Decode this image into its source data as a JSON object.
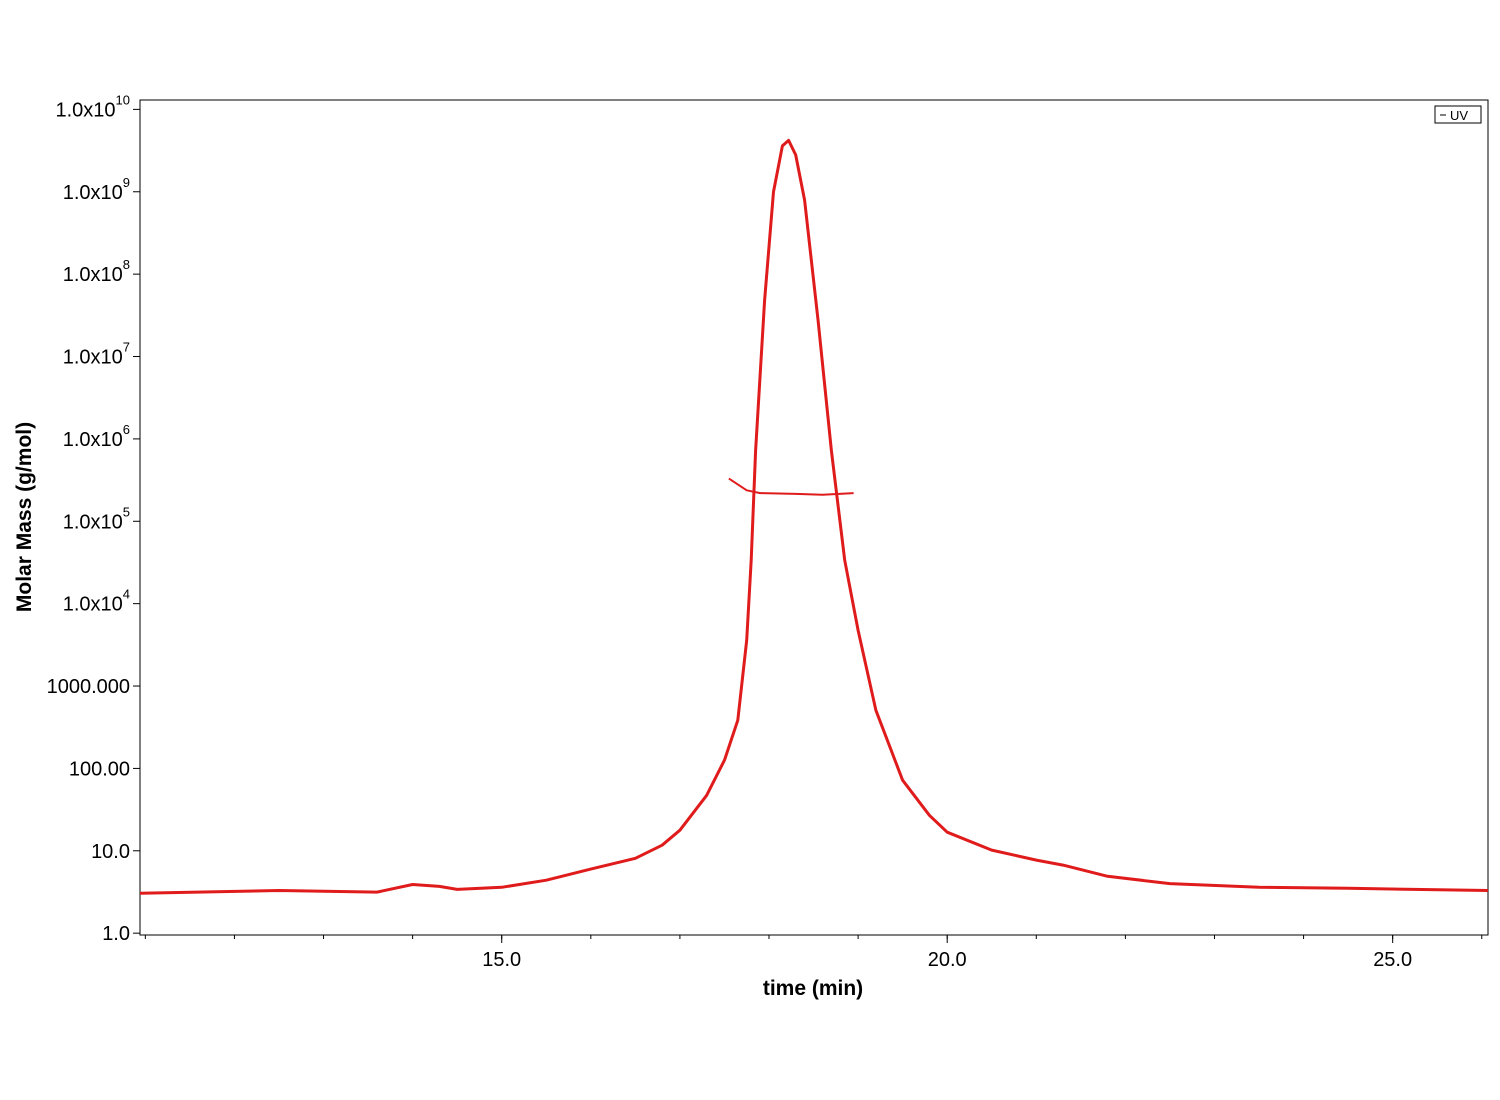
{
  "chart_data": {
    "type": "line",
    "x_label": "time (min)",
    "y_label": "Molar Mass (g/mol)",
    "log_y": true,
    "xlim": [
      10.94,
      26.07
    ],
    "ylim": [
      0.95,
      13000000000
    ],
    "xticks": [
      {
        "value": 15,
        "label": "15.0"
      },
      {
        "value": 20,
        "label": "20.0"
      },
      {
        "value": 25,
        "label": "25.0"
      }
    ],
    "xminor_ticks": [
      11,
      12,
      13,
      14,
      15,
      16,
      17,
      18,
      19,
      20,
      21,
      22,
      23,
      24,
      25,
      26
    ],
    "yticks": [
      {
        "value": 1,
        "label": "1.0"
      },
      {
        "value": 10,
        "label": "10.0"
      },
      {
        "value": 100,
        "label": "100.00"
      },
      {
        "value": 1000,
        "label": "1000.000"
      },
      {
        "value": 10000,
        "label": "1.0x10",
        "sup": "4"
      },
      {
        "value": 100000,
        "label": "1.0x10",
        "sup": "5"
      },
      {
        "value": 1000000,
        "label": "1.0x10",
        "sup": "6"
      },
      {
        "value": 10000000,
        "label": "1.0x10",
        "sup": "7"
      },
      {
        "value": 100000000,
        "label": "1.0x10",
        "sup": "8"
      },
      {
        "value": 1000000000,
        "label": "1.0x10",
        "sup": "9"
      },
      {
        "value": 10000000000,
        "label": "1.0x10",
        "sup": "10"
      }
    ],
    "legend": "top-right",
    "series": [
      {
        "name": "UV",
        "color": "#e01b1b",
        "x": [
          10.94,
          12.5,
          13.6,
          14.0,
          14.3,
          14.5,
          15.0,
          15.5,
          16.0,
          16.5,
          16.8,
          17.0,
          17.3,
          17.5,
          17.65,
          17.75,
          17.8,
          17.85,
          17.95,
          18.05,
          18.15,
          18.22,
          18.3,
          18.4,
          18.55,
          18.7,
          18.85,
          19.0,
          19.2,
          19.5,
          19.8,
          20.0,
          20.5,
          21.0,
          21.3,
          21.8,
          22.5,
          23.5,
          24.5,
          26.07
        ],
        "values": [
          3.06,
          3.3,
          3.15,
          3.9,
          3.7,
          3.4,
          3.6,
          4.4,
          6.0,
          8.1,
          11.7,
          17.8,
          47,
          126,
          385,
          3600,
          33800,
          720000,
          48000000,
          1000000000,
          3600000000,
          4200000000,
          2800000000,
          790000000,
          28000000,
          720000,
          33800,
          4750,
          508,
          72,
          27,
          16.8,
          10.2,
          7.7,
          6.7,
          4.9,
          4.0,
          3.6,
          3.5,
          3.3
        ]
      },
      {
        "color": "#e01b1b",
        "x": [
          17.55,
          17.75,
          17.9,
          18.3,
          18.6,
          18.95
        ],
        "values": [
          330000,
          238000,
          220000,
          215000,
          210000,
          220000
        ]
      }
    ]
  }
}
